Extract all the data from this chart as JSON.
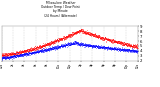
{
  "title": "Milwaukee Weather  Outdoor Temp / Dew Point  by Minute  (24 Hours) (Alternate)",
  "bg_color": "#ffffff",
  "plot_bg_color": "#ffffff",
  "text_color": "#000000",
  "grid_color": "#bbbbbb",
  "temp_color": "#ff0000",
  "dew_color": "#0000ff",
  "ylim": [
    20,
    90
  ],
  "ytick_values": [
    20,
    30,
    40,
    50,
    60,
    70,
    80,
    90
  ],
  "ytick_labels": [
    "2",
    "3",
    "4",
    "5",
    "6",
    "7",
    "8",
    "9"
  ],
  "xlim": [
    0,
    1440
  ],
  "n_points": 1440,
  "temp_start": 32,
  "temp_peak": 82,
  "temp_peak_t": 840,
  "temp_end": 48,
  "dew_start": 26,
  "dew_peak": 57,
  "dew_peak_t": 780,
  "dew_end": 40
}
